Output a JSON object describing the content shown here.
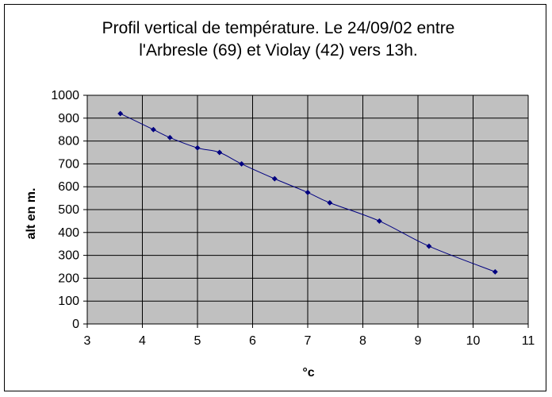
{
  "chart_data": {
    "type": "scatter",
    "title_lines": [
      "Profil vertical de température. Le 24/09/02 entre",
      "l'Arbresle (69) et Violay (42) vers 13h."
    ],
    "xlabel": "°c",
    "ylabel": "alt en m.",
    "xlim": [
      3,
      11
    ],
    "ylim": [
      0,
      1000
    ],
    "x_ticks": [
      3,
      4,
      5,
      6,
      7,
      8,
      9,
      10,
      11
    ],
    "y_ticks": [
      0,
      100,
      200,
      300,
      400,
      500,
      600,
      700,
      800,
      900,
      1000
    ],
    "grid": true,
    "legend": "none",
    "plot_background": "#c0c0c0",
    "series": [
      {
        "color": "#000080",
        "marker": "diamond",
        "line": "smooth",
        "points": [
          {
            "x": 3.6,
            "y": 920
          },
          {
            "x": 4.2,
            "y": 850
          },
          {
            "x": 4.5,
            "y": 815
          },
          {
            "x": 5.0,
            "y": 770
          },
          {
            "x": 5.4,
            "y": 750
          },
          {
            "x": 5.8,
            "y": 700
          },
          {
            "x": 6.4,
            "y": 635
          },
          {
            "x": 7.0,
            "y": 575
          },
          {
            "x": 7.4,
            "y": 530
          },
          {
            "x": 8.3,
            "y": 450
          },
          {
            "x": 9.2,
            "y": 340
          },
          {
            "x": 10.4,
            "y": 228
          }
        ]
      }
    ]
  }
}
